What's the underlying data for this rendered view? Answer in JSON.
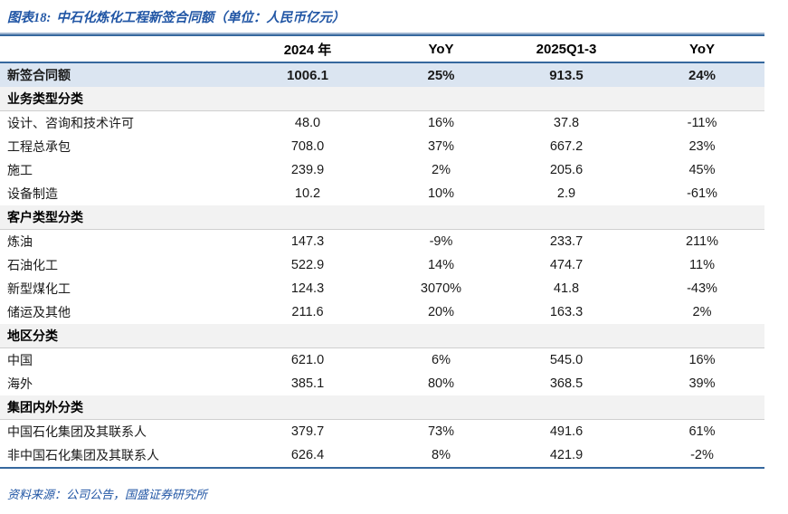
{
  "figure": {
    "label": "图表18:",
    "title": "中石化炼化工程新签合同额（单位：人民币亿元）"
  },
  "source_note": "资料来源：公司公告，国盛证券研究所",
  "colors": {
    "title_blue": "#2156a5",
    "table_border_navy": "#36689e",
    "table_border_light": "#9db3cf",
    "highlight_row_bg": "#dbe5f1",
    "section_row_bg": "#f2f2f2",
    "text_black": "#1a1a1a"
  },
  "table": {
    "columns": [
      "",
      "2024 年",
      "YoY",
      "2025Q1-3",
      "YoY"
    ],
    "rows": [
      {
        "type": "highlight",
        "label": "新签合同额",
        "values": [
          "1006.1",
          "25%",
          "913.5",
          "24%"
        ]
      },
      {
        "type": "section",
        "label": "业务类型分类",
        "values": [
          "",
          "",
          "",
          ""
        ]
      },
      {
        "type": "data",
        "label": "设计、咨询和技术许可",
        "values": [
          "48.0",
          "16%",
          "37.8",
          "-11%"
        ]
      },
      {
        "type": "data",
        "label": "工程总承包",
        "values": [
          "708.0",
          "37%",
          "667.2",
          "23%"
        ]
      },
      {
        "type": "data",
        "label": "施工",
        "values": [
          "239.9",
          "2%",
          "205.6",
          "45%"
        ]
      },
      {
        "type": "data",
        "label": "设备制造",
        "values": [
          "10.2",
          "10%",
          "2.9",
          "-61%"
        ]
      },
      {
        "type": "section",
        "label": "客户类型分类",
        "values": [
          "",
          "",
          "",
          ""
        ]
      },
      {
        "type": "data",
        "label": "炼油",
        "values": [
          "147.3",
          "-9%",
          "233.7",
          "211%"
        ]
      },
      {
        "type": "data",
        "label": "石油化工",
        "values": [
          "522.9",
          "14%",
          "474.7",
          "11%"
        ]
      },
      {
        "type": "data",
        "label": "新型煤化工",
        "values": [
          "124.3",
          "3070%",
          "41.8",
          "-43%"
        ]
      },
      {
        "type": "data",
        "label": "储运及其他",
        "values": [
          "211.6",
          "20%",
          "163.3",
          "2%"
        ]
      },
      {
        "type": "section",
        "label": "地区分类",
        "values": [
          "",
          "",
          "",
          ""
        ]
      },
      {
        "type": "data",
        "label": "中国",
        "values": [
          "621.0",
          "6%",
          "545.0",
          "16%"
        ]
      },
      {
        "type": "data",
        "label": "海外",
        "values": [
          "385.1",
          "80%",
          "368.5",
          "39%"
        ]
      },
      {
        "type": "section",
        "label": "集团内外分类",
        "values": [
          "",
          "",
          "",
          ""
        ]
      },
      {
        "type": "data",
        "label": "中国石化集团及其联系人",
        "values": [
          "379.7",
          "73%",
          "491.6",
          "61%"
        ]
      },
      {
        "type": "data",
        "label": "非中国石化集团及其联系人",
        "values": [
          "626.4",
          "8%",
          "421.9",
          "-2%"
        ]
      }
    ]
  }
}
